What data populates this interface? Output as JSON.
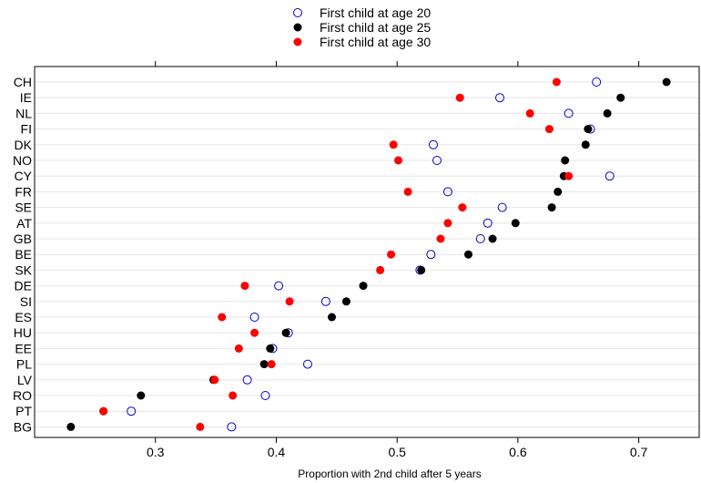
{
  "chart_data": {
    "type": "scatter",
    "xlabel": "Proportion with 2nd child after 5 years",
    "ylabel": "",
    "xlim": [
      0.2,
      0.75
    ],
    "xticks": [
      0.3,
      0.4,
      0.5,
      0.6,
      0.7
    ],
    "xtick_labels": [
      "0.3",
      "0.4",
      "0.5",
      "0.6",
      "0.7"
    ],
    "grid": "horizontal",
    "legend_position": "top-center",
    "categories": [
      "CH",
      "IE",
      "NL",
      "FI",
      "DK",
      "NO",
      "CY",
      "FR",
      "SE",
      "AT",
      "GB",
      "BE",
      "SK",
      "DE",
      "SI",
      "ES",
      "HU",
      "EE",
      "PL",
      "LV",
      "RO",
      "PT",
      "BG"
    ],
    "series": [
      {
        "name": "First child at age 20",
        "color": "#0000cc",
        "marker": "open-circle",
        "values": [
          0.665,
          0.585,
          0.642,
          0.66,
          0.53,
          0.533,
          0.676,
          0.542,
          0.587,
          0.575,
          0.569,
          0.528,
          0.519,
          0.402,
          0.441,
          0.382,
          0.41,
          0.397,
          0.426,
          0.376,
          0.391,
          0.28,
          0.363
        ]
      },
      {
        "name": "First child at age 25",
        "color": "#000000",
        "marker": "filled-circle",
        "values": [
          0.723,
          0.685,
          0.674,
          0.658,
          0.656,
          0.639,
          0.638,
          0.633,
          0.628,
          0.598,
          0.579,
          0.559,
          0.52,
          0.472,
          0.458,
          0.446,
          0.408,
          0.395,
          0.39,
          0.348,
          0.288,
          0.257,
          0.23
        ]
      },
      {
        "name": "First child at age 30",
        "color": "#ff0000",
        "marker": "filled-circle",
        "values": [
          0.632,
          0.552,
          0.61,
          0.626,
          0.497,
          0.501,
          0.642,
          0.509,
          0.554,
          0.542,
          0.536,
          0.495,
          0.486,
          0.374,
          0.411,
          0.355,
          0.382,
          0.369,
          0.396,
          0.349,
          0.364,
          0.257,
          0.337
        ]
      }
    ]
  }
}
